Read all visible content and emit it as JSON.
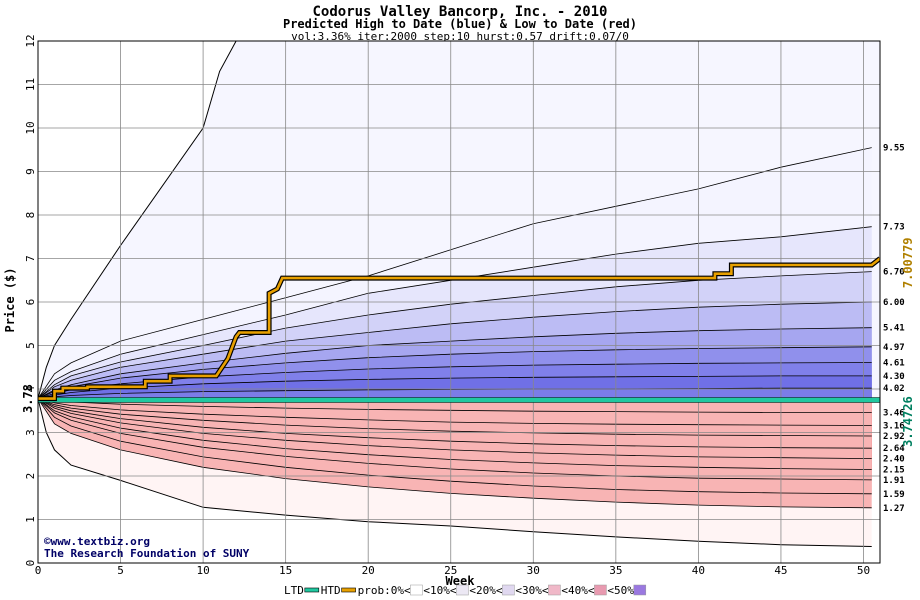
{
  "chart_data": {
    "type": "area",
    "title": "Codorus Valley Bancorp, Inc. - 2010",
    "subtitle": "Predicted High to Date (blue) &  Low to Date (red)",
    "params": "vol:3.36% iter:2000 step:10 hurst:0.57 drift:0.07/0",
    "xlabel": "Week",
    "ylabel": "Price ($)",
    "xlim": [
      0,
      51
    ],
    "ylim": [
      0,
      12
    ],
    "xticks": [
      0,
      5,
      10,
      15,
      20,
      25,
      30,
      35,
      40,
      45,
      50
    ],
    "yticks": [
      0,
      1,
      2,
      3,
      4,
      5,
      6,
      7,
      8,
      9,
      10,
      11,
      12
    ],
    "grid": true,
    "start_price": 3.78,
    "start_label": "3.78",
    "x": [
      0,
      1,
      2,
      5,
      10,
      15,
      20,
      25,
      30,
      35,
      40,
      45,
      50.5
    ],
    "high_band_tops": [
      {
        "end": 9.55,
        "label": "9.55",
        "values": [
          3.78,
          4.35,
          4.6,
          5.1,
          5.6,
          6.1,
          6.6,
          7.2,
          7.8,
          8.2,
          8.6,
          9.1,
          9.55
        ]
      },
      {
        "end": 7.73,
        "label": "7.73",
        "values": [
          3.78,
          4.2,
          4.4,
          4.8,
          5.25,
          5.7,
          6.2,
          6.5,
          6.8,
          7.1,
          7.35,
          7.5,
          7.73
        ]
      },
      {
        "end": 6.7,
        "label": "6.70",
        "values": [
          3.78,
          4.1,
          4.3,
          4.62,
          5.0,
          5.4,
          5.7,
          5.95,
          6.15,
          6.35,
          6.5,
          6.6,
          6.7
        ]
      },
      {
        "end": 6.0,
        "label": "6.00",
        "values": [
          3.78,
          4.05,
          4.2,
          4.5,
          4.8,
          5.1,
          5.3,
          5.5,
          5.65,
          5.78,
          5.88,
          5.95,
          6.0
        ]
      },
      {
        "end": 5.41,
        "label": "5.41",
        "values": [
          3.78,
          3.98,
          4.1,
          4.35,
          4.6,
          4.82,
          5.0,
          5.1,
          5.2,
          5.28,
          5.34,
          5.38,
          5.41
        ]
      },
      {
        "end": 4.97,
        "label": "4.97",
        "values": [
          3.78,
          3.95,
          4.05,
          4.25,
          4.45,
          4.6,
          4.72,
          4.8,
          4.86,
          4.9,
          4.93,
          4.95,
          4.97
        ]
      },
      {
        "end": 4.61,
        "label": "4.61",
        "values": [
          3.78,
          3.9,
          3.98,
          4.12,
          4.28,
          4.38,
          4.46,
          4.51,
          4.55,
          4.57,
          4.59,
          4.6,
          4.61
        ]
      },
      {
        "end": 4.3,
        "label": "4.30",
        "values": [
          3.78,
          3.86,
          3.92,
          4.02,
          4.12,
          4.18,
          4.22,
          4.25,
          4.27,
          4.28,
          4.29,
          4.3,
          4.3
        ]
      },
      {
        "end": 4.02,
        "label": "4.02",
        "values": [
          3.78,
          3.82,
          3.85,
          3.9,
          3.94,
          3.96,
          3.98,
          3.99,
          4.0,
          4.0,
          4.01,
          4.02,
          4.02
        ]
      }
    ],
    "low_band_bottoms": [
      {
        "end": 3.46,
        "label": "3.46",
        "values": [
          3.78,
          3.72,
          3.7,
          3.65,
          3.6,
          3.56,
          3.53,
          3.51,
          3.49,
          3.48,
          3.47,
          3.46,
          3.46
        ]
      },
      {
        "end": 3.16,
        "label": "3.16",
        "values": [
          3.78,
          3.68,
          3.62,
          3.52,
          3.42,
          3.35,
          3.29,
          3.24,
          3.21,
          3.19,
          3.18,
          3.17,
          3.16
        ]
      },
      {
        "end": 2.92,
        "label": "2.92",
        "values": [
          3.78,
          3.64,
          3.56,
          3.42,
          3.28,
          3.17,
          3.09,
          3.03,
          2.99,
          2.96,
          2.94,
          2.93,
          2.92
        ]
      },
      {
        "end": 2.64,
        "label": "2.64",
        "values": [
          3.78,
          3.6,
          3.5,
          3.32,
          3.12,
          2.98,
          2.88,
          2.8,
          2.74,
          2.7,
          2.67,
          2.65,
          2.64
        ]
      },
      {
        "end": 2.4,
        "label": "2.40",
        "values": [
          3.78,
          3.56,
          3.44,
          3.22,
          2.98,
          2.82,
          2.7,
          2.6,
          2.53,
          2.48,
          2.44,
          2.42,
          2.4
        ]
      },
      {
        "end": 2.15,
        "label": "2.15",
        "values": [
          3.78,
          3.5,
          3.36,
          3.1,
          2.82,
          2.63,
          2.49,
          2.38,
          2.3,
          2.24,
          2.2,
          2.17,
          2.15
        ]
      },
      {
        "end": 1.91,
        "label": "1.91",
        "values": [
          3.78,
          3.45,
          3.28,
          2.98,
          2.66,
          2.45,
          2.29,
          2.16,
          2.07,
          2.0,
          1.95,
          1.93,
          1.91
        ]
      },
      {
        "end": 1.59,
        "label": "1.59",
        "values": [
          3.78,
          3.35,
          3.15,
          2.8,
          2.44,
          2.2,
          2.02,
          1.88,
          1.77,
          1.69,
          1.64,
          1.61,
          1.59
        ]
      },
      {
        "end": 1.27,
        "label": "1.27",
        "values": [
          3.78,
          3.2,
          2.98,
          2.6,
          2.2,
          1.94,
          1.75,
          1.6,
          1.49,
          1.4,
          1.33,
          1.29,
          1.27
        ]
      }
    ],
    "outer_high": {
      "x": [
        0,
        0.5,
        1,
        2,
        5,
        10,
        11,
        12
      ],
      "values": [
        3.78,
        4.5,
        5.0,
        5.6,
        7.3,
        10.0,
        11.3,
        12.0
      ]
    },
    "outer_low": {
      "x": [
        0,
        0.5,
        1,
        2,
        5,
        10,
        15,
        20,
        25,
        30,
        35,
        40,
        45,
        50.5
      ],
      "values": [
        3.78,
        3.0,
        2.6,
        2.25,
        1.9,
        1.28,
        1.1,
        0.95,
        0.85,
        0.72,
        0.6,
        0.5,
        0.42,
        0.38
      ]
    },
    "htd_actual": {
      "color": "#e8a000",
      "points": [
        [
          0,
          3.78
        ],
        [
          1,
          3.78
        ],
        [
          1,
          3.95
        ],
        [
          1.5,
          3.95
        ],
        [
          1.5,
          4.02
        ],
        [
          3,
          4.02
        ],
        [
          3,
          4.05
        ],
        [
          6.5,
          4.05
        ],
        [
          6.5,
          4.18
        ],
        [
          8,
          4.18
        ],
        [
          8,
          4.3
        ],
        [
          10.8,
          4.3
        ],
        [
          11.5,
          4.7
        ],
        [
          12,
          5.2
        ],
        [
          12.2,
          5.3
        ],
        [
          14,
          5.3
        ],
        [
          14,
          6.2
        ],
        [
          14.5,
          6.3
        ],
        [
          14.8,
          6.55
        ],
        [
          41,
          6.55
        ],
        [
          41,
          6.65
        ],
        [
          42,
          6.65
        ],
        [
          42,
          6.85
        ],
        [
          50.5,
          6.85
        ],
        [
          51,
          7.0
        ]
      ]
    },
    "ltd_line": {
      "color": "#20c8a0",
      "value": 3.74726
    },
    "right_labels": [
      {
        "text": "7.00779",
        "color": "#b08000"
      },
      {
        "text": "3.74726",
        "color": "#008060"
      }
    ],
    "bands": {
      "high_colors": [
        "#f4f4ff",
        "#e6e6fc",
        "#d2d2f8",
        "#bcbcf4",
        "#a6a6f0",
        "#9090ec",
        "#8080ea",
        "#7070e6",
        "#7c7ce8"
      ],
      "low_colors": [
        "#ffeaea",
        "#ffd8d8",
        "#fcc6c6",
        "#f8b0b0",
        "#f49898",
        "#f08080",
        "#ec7070",
        "#f28c8c",
        "#f8b4b4"
      ]
    },
    "credit": [
      "©www.textbiz.org",
      "The Research Foundation of SUNY"
    ],
    "legend": [
      {
        "label": "LTD",
        "color": "#20c8a0",
        "kind": "line"
      },
      {
        "label": "HTD",
        "color": "#e8a000",
        "kind": "line"
      },
      {
        "label": "prob:0%<",
        "color": "#ffffff",
        "kind": "box"
      },
      {
        "label": "<10%<",
        "color": "#ece8f4",
        "kind": "box"
      },
      {
        "label": "<20%<",
        "color": "#e0d8f0",
        "kind": "box"
      },
      {
        "label": "<30%<",
        "color": "#f0b8c8",
        "kind": "box"
      },
      {
        "label": "<40%<",
        "color": "#e89ab0",
        "kind": "box"
      },
      {
        "label": "<50%",
        "color": "#9a78e0",
        "kind": "box"
      }
    ]
  }
}
